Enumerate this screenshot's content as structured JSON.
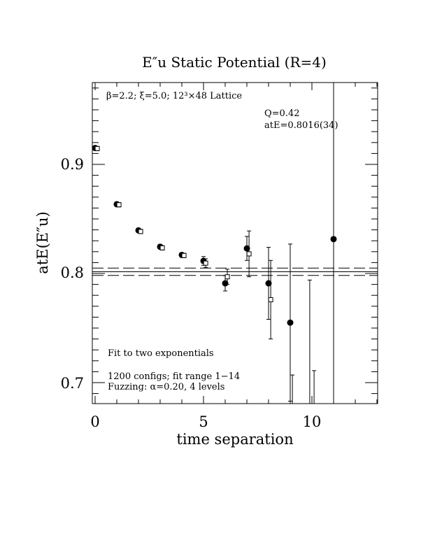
{
  "chart_data": {
    "type": "scatter",
    "title": "E″u  Static Potential (R=4)",
    "xlabel": "time separation",
    "ylabel": "atE(E″u)",
    "xlim": [
      -0.1,
      13.1
    ],
    "ylim": [
      0.68,
      0.975
    ],
    "xticks": [
      0,
      5,
      10
    ],
    "yticks": [
      0.7,
      0.8,
      0.9
    ],
    "xtick_labels": [
      "0",
      "5",
      "10"
    ],
    "ytick_labels": [
      "0.7",
      "0.8",
      "0.9"
    ],
    "grid": false,
    "annotations": {
      "lattice": "β=2.2; ξ=5.0; 12³×48 Lattice",
      "q_value": "Q=0.42",
      "fit_energy": "atE=0.8016(34)",
      "fit_type": "Fit to two exponentials",
      "configs": "1200 configs; fit range 1−14",
      "fuzzing": "Fuzzing: α=0.20, 4 levels"
    },
    "fit": {
      "value": 0.8016,
      "error": 0.0034
    },
    "series": [
      {
        "marker": "filled-circle",
        "points": [
          {
            "x": 0,
            "y": 0.915,
            "err": 0.002
          },
          {
            "x": 1,
            "y": 0.8635,
            "err": 0.002
          },
          {
            "x": 2,
            "y": 0.8395,
            "err": 0.002
          },
          {
            "x": 3,
            "y": 0.8245,
            "err": 0.002
          },
          {
            "x": 4,
            "y": 0.817,
            "err": 0.002
          },
          {
            "x": 5,
            "y": 0.8115,
            "err": 0.004
          },
          {
            "x": 6,
            "y": 0.791,
            "err": 0.007
          },
          {
            "x": 7,
            "y": 0.823,
            "err": 0.011
          },
          {
            "x": 8,
            "y": 0.791,
            "err": 0.033
          },
          {
            "x": 9,
            "y": 0.755,
            "err": 0.072
          },
          {
            "x": 11,
            "y": 0.8315,
            "err": 0.17
          }
        ]
      },
      {
        "marker": "open-square",
        "points": [
          {
            "x": 0.1,
            "y": 0.9145,
            "err": 0.002
          },
          {
            "x": 1.1,
            "y": 0.863,
            "err": 0.002
          },
          {
            "x": 2.1,
            "y": 0.8385,
            "err": 0.002
          },
          {
            "x": 3.1,
            "y": 0.8235,
            "err": 0.002
          },
          {
            "x": 4.1,
            "y": 0.8165,
            "err": 0.002
          },
          {
            "x": 5.1,
            "y": 0.8095,
            "err": 0.004
          },
          {
            "x": 6.1,
            "y": 0.797,
            "err": 0.007
          },
          {
            "x": 7.1,
            "y": 0.818,
            "err": 0.021
          },
          {
            "x": 8.1,
            "y": 0.776,
            "err": 0.036
          },
          {
            "x": 9.1,
            "y": 0.68,
            "err": 0.027
          },
          {
            "x": 10.1,
            "y": 0.68,
            "err": 0.031
          }
        ]
      }
    ],
    "extra_errorbars": [
      {
        "x": 9.9,
        "y_low": 0.68,
        "y_high": 0.794
      }
    ]
  }
}
